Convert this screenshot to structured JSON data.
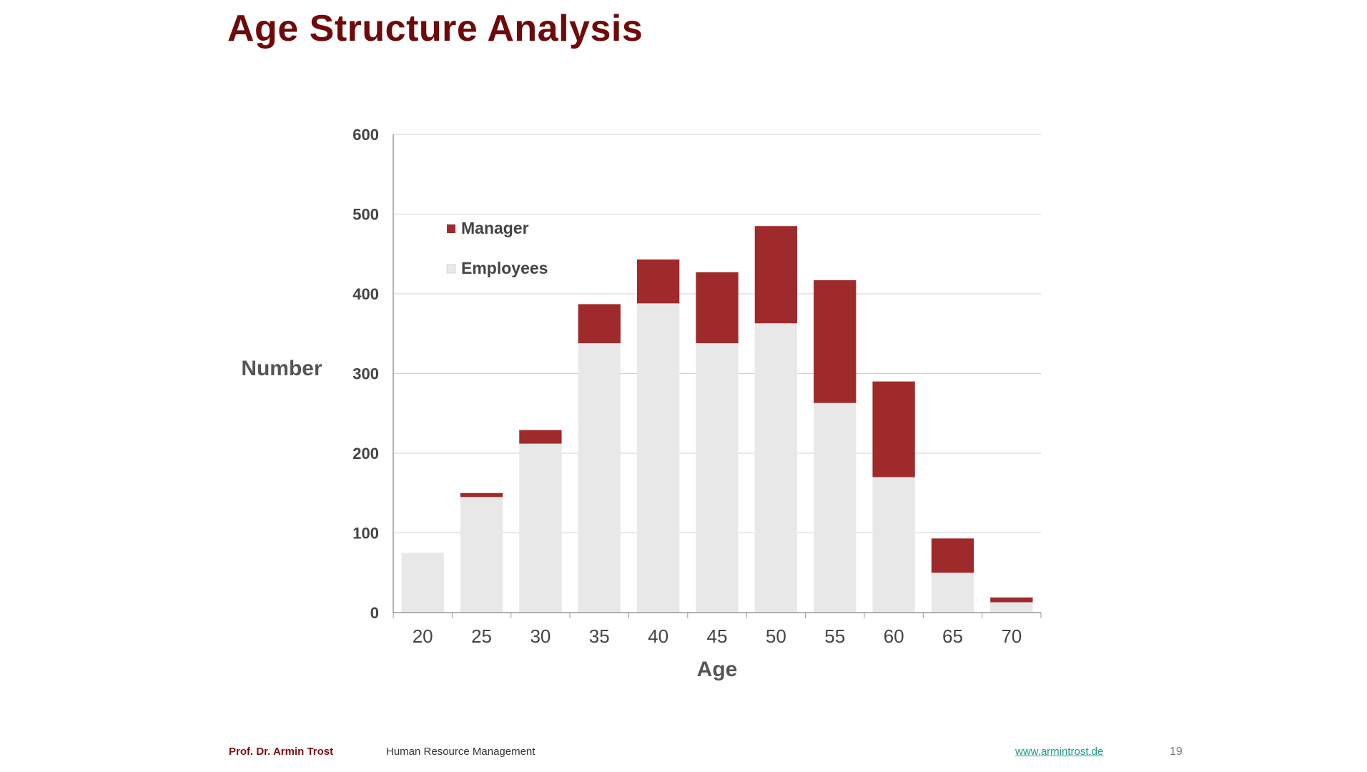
{
  "slide": {
    "title": "Age Structure Analysis",
    "footer": {
      "author": "Prof. Dr. Armin Trost",
      "course": "Human Resource Management",
      "link": "www.armintrost.de",
      "page": "19"
    }
  },
  "colors": {
    "manager": "#9e2a2b",
    "employees": "#e8e8e8",
    "title": "#6e0a0a",
    "grid": "#d0d0d0"
  },
  "chart_data": {
    "type": "bar",
    "stacked": true,
    "categories": [
      "20",
      "25",
      "30",
      "35",
      "40",
      "45",
      "50",
      "55",
      "60",
      "65",
      "70"
    ],
    "series": [
      {
        "name": "Employees",
        "values": [
          75,
          145,
          212,
          338,
          388,
          338,
          363,
          263,
          170,
          50,
          13
        ]
      },
      {
        "name": "Manager",
        "values": [
          0,
          5,
          17,
          49,
          55,
          89,
          122,
          154,
          120,
          43,
          6
        ]
      }
    ],
    "yticks": [
      "0",
      "100",
      "200",
      "300",
      "400",
      "500",
      "600"
    ],
    "ylim": [
      0,
      600
    ],
    "xlabel": "Age",
    "ylabel": "Number",
    "legend_order": [
      "Manager",
      "Employees"
    ],
    "legend_position": "top-left",
    "grid": true
  }
}
